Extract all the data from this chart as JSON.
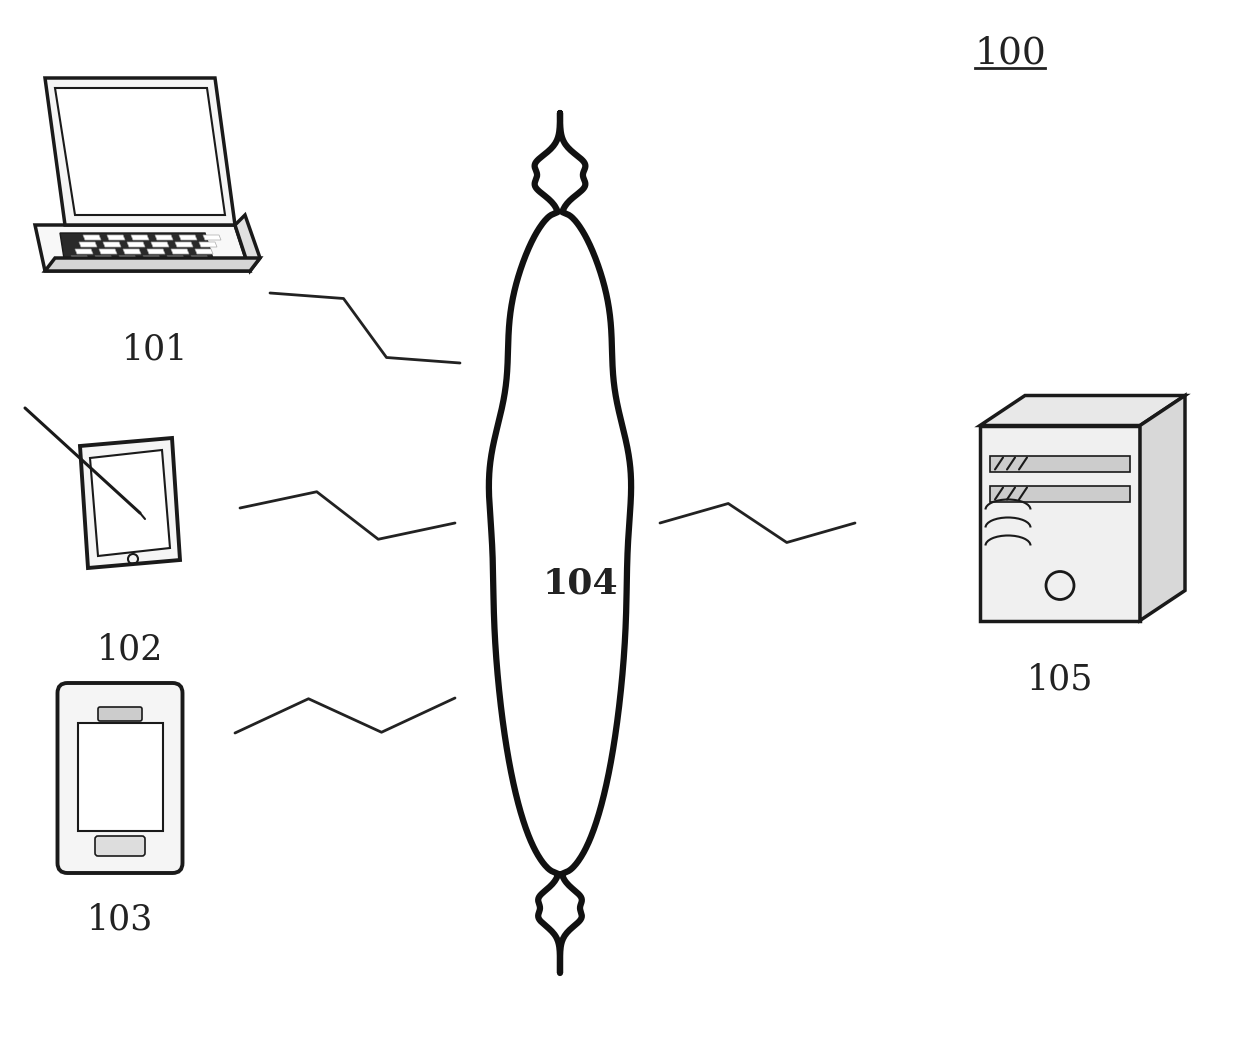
{
  "title_label": "100",
  "label_101": "101",
  "label_102": "102",
  "label_103": "103",
  "label_104": "104",
  "label_105": "105",
  "bg_color": "#ffffff",
  "line_color": "#222222",
  "font_size_label": 22
}
